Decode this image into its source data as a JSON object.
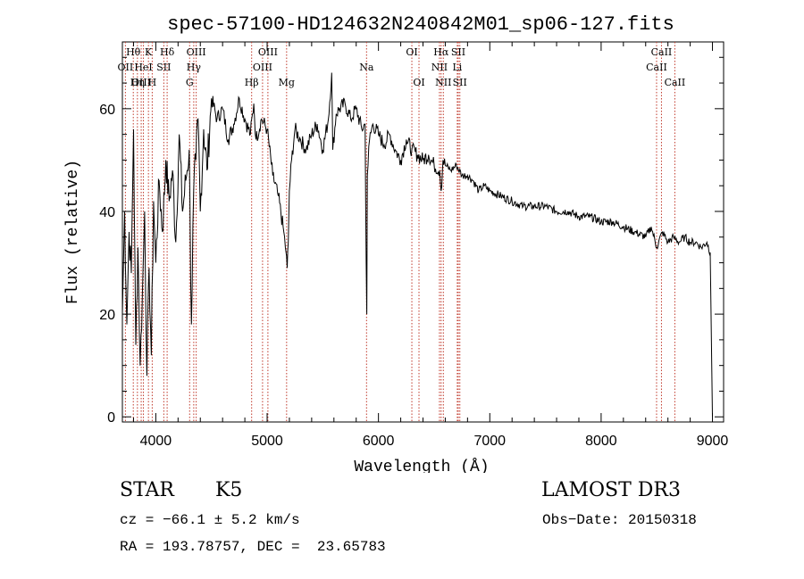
{
  "chart_data": {
    "type": "line",
    "title": "spec-57100-HD124632N240842M01_sp06-127.fits",
    "xlabel": "Wavelength (Å)",
    "ylabel": "Flux (relative)",
    "xlim": [
      3700,
      9100
    ],
    "ylim": [
      -1,
      73
    ],
    "xticks": [
      4000,
      5000,
      6000,
      7000,
      8000,
      9000
    ],
    "yticks": [
      0,
      20,
      40,
      60
    ],
    "xtick_labels": [
      "4000",
      "5000",
      "6000",
      "7000",
      "8000",
      "9000"
    ],
    "ytick_labels": [
      "0",
      "20",
      "40",
      "60"
    ],
    "series": [
      {
        "name": "flux",
        "x": [
          3700,
          3720,
          3740,
          3760,
          3780,
          3800,
          3820,
          3840,
          3860,
          3880,
          3900,
          3920,
          3940,
          3960,
          3980,
          4000,
          4030,
          4060,
          4090,
          4120,
          4150,
          4180,
          4210,
          4240,
          4270,
          4300,
          4320,
          4340,
          4360,
          4380,
          4400,
          4430,
          4460,
          4500,
          4550,
          4600,
          4650,
          4700,
          4750,
          4800,
          4850,
          4880,
          4900,
          4950,
          5000,
          5050,
          5100,
          5150,
          5170,
          5180,
          5190,
          5200,
          5220,
          5250,
          5300,
          5350,
          5400,
          5450,
          5500,
          5550,
          5580,
          5590,
          5620,
          5650,
          5700,
          5750,
          5800,
          5850,
          5880,
          5890,
          5895,
          5900,
          5920,
          5950,
          6000,
          6050,
          6100,
          6150,
          6200,
          6250,
          6300,
          6350,
          6400,
          6450,
          6500,
          6550,
          6563,
          6580,
          6600,
          6650,
          6700,
          6750,
          6800,
          6850,
          6900,
          6950,
          7000,
          7100,
          7200,
          7300,
          7400,
          7500,
          7600,
          7700,
          7800,
          7900,
          8000,
          8100,
          8200,
          8300,
          8400,
          8450,
          8500,
          8550,
          8600,
          8650,
          8700,
          8750,
          8800,
          8850,
          8900,
          8950,
          8980,
          9000
        ],
        "values": [
          20,
          40,
          18,
          36,
          28,
          56,
          14,
          33,
          10,
          24,
          40,
          8,
          29,
          12,
          42,
          30,
          46,
          36,
          50,
          42,
          48,
          34,
          55,
          40,
          46,
          52,
          18,
          44,
          50,
          58,
          40,
          56,
          48,
          62,
          58,
          60,
          54,
          57,
          62,
          58,
          55,
          61,
          54,
          58,
          56,
          47,
          43,
          36,
          32,
          29,
          34,
          44,
          50,
          56,
          54,
          52,
          55,
          57,
          52,
          58,
          67,
          52,
          59,
          60,
          61,
          58,
          60,
          56,
          57,
          30,
          20,
          47,
          54,
          57,
          55,
          53,
          55,
          52,
          50,
          54,
          52,
          51,
          50,
          51,
          49,
          48,
          44,
          50,
          49,
          48,
          49,
          47,
          47,
          46,
          44,
          45,
          44,
          43,
          42,
          41,
          41,
          41,
          40,
          40,
          39,
          39,
          38,
          38,
          37,
          36,
          35,
          37,
          33,
          36,
          34,
          35,
          34,
          35,
          34,
          34,
          33,
          34,
          32,
          0
        ]
      }
    ],
    "lines": [
      {
        "label": "Hθ",
        "x": 3798,
        "row": 1
      },
      {
        "label": "OII",
        "x": 3727,
        "row": 2
      },
      {
        "label": "OIII",
        "x": 3869,
        "row": 3
      },
      {
        "label": "K",
        "x": 3934,
        "row": 1
      },
      {
        "label": "HeI",
        "x": 3889,
        "row": 2
      },
      {
        "label": "Hη",
        "x": 3835,
        "row": 3
      },
      {
        "label": "Hδ",
        "x": 4102,
        "row": 1
      },
      {
        "label": "SII",
        "x": 4072,
        "row": 2
      },
      {
        "label": "H",
        "x": 3968,
        "row": 3
      },
      {
        "label": "OIII",
        "x": 4363,
        "row": 1
      },
      {
        "label": "Hγ",
        "x": 4341,
        "row": 2
      },
      {
        "label": "G",
        "x": 4304,
        "row": 3
      },
      {
        "label": "OIII",
        "x": 5007,
        "row": 1
      },
      {
        "label": "OIII",
        "x": 4959,
        "row": 2
      },
      {
        "label": "Hβ",
        "x": 4861,
        "row": 3
      },
      {
        "label": "Mg",
        "x": 5175,
        "row": 3
      },
      {
        "label": "Na",
        "x": 5893,
        "row": 2
      },
      {
        "label": "OI",
        "x": 6300,
        "row": 1
      },
      {
        "label": "OI",
        "x": 6364,
        "row": 3
      },
      {
        "label": "Hα",
        "x": 6563,
        "row": 1
      },
      {
        "label": "NII",
        "x": 6548,
        "row": 2
      },
      {
        "label": "NII",
        "x": 6583,
        "row": 3
      },
      {
        "label": "SII",
        "x": 6717,
        "row": 1
      },
      {
        "label": "Li",
        "x": 6708,
        "row": 2
      },
      {
        "label": "SII",
        "x": 6731,
        "row": 3
      },
      {
        "label": "CaII",
        "x": 8542,
        "row": 1
      },
      {
        "label": "CaII",
        "x": 8498,
        "row": 2
      },
      {
        "label": "CaII",
        "x": 8662,
        "row": 3
      }
    ]
  },
  "info": {
    "object_type": "STAR",
    "subclass": "K5",
    "survey": "LAMOST DR3",
    "cz": "cz = −66.1 ± 5.2 km/s",
    "obs_date": "Obs−Date: 20150318",
    "coords": "RA = 193.78757, DEC =  23.65783"
  },
  "colors": {
    "line_marker": "#c0392b",
    "spectrum": "#000000"
  }
}
